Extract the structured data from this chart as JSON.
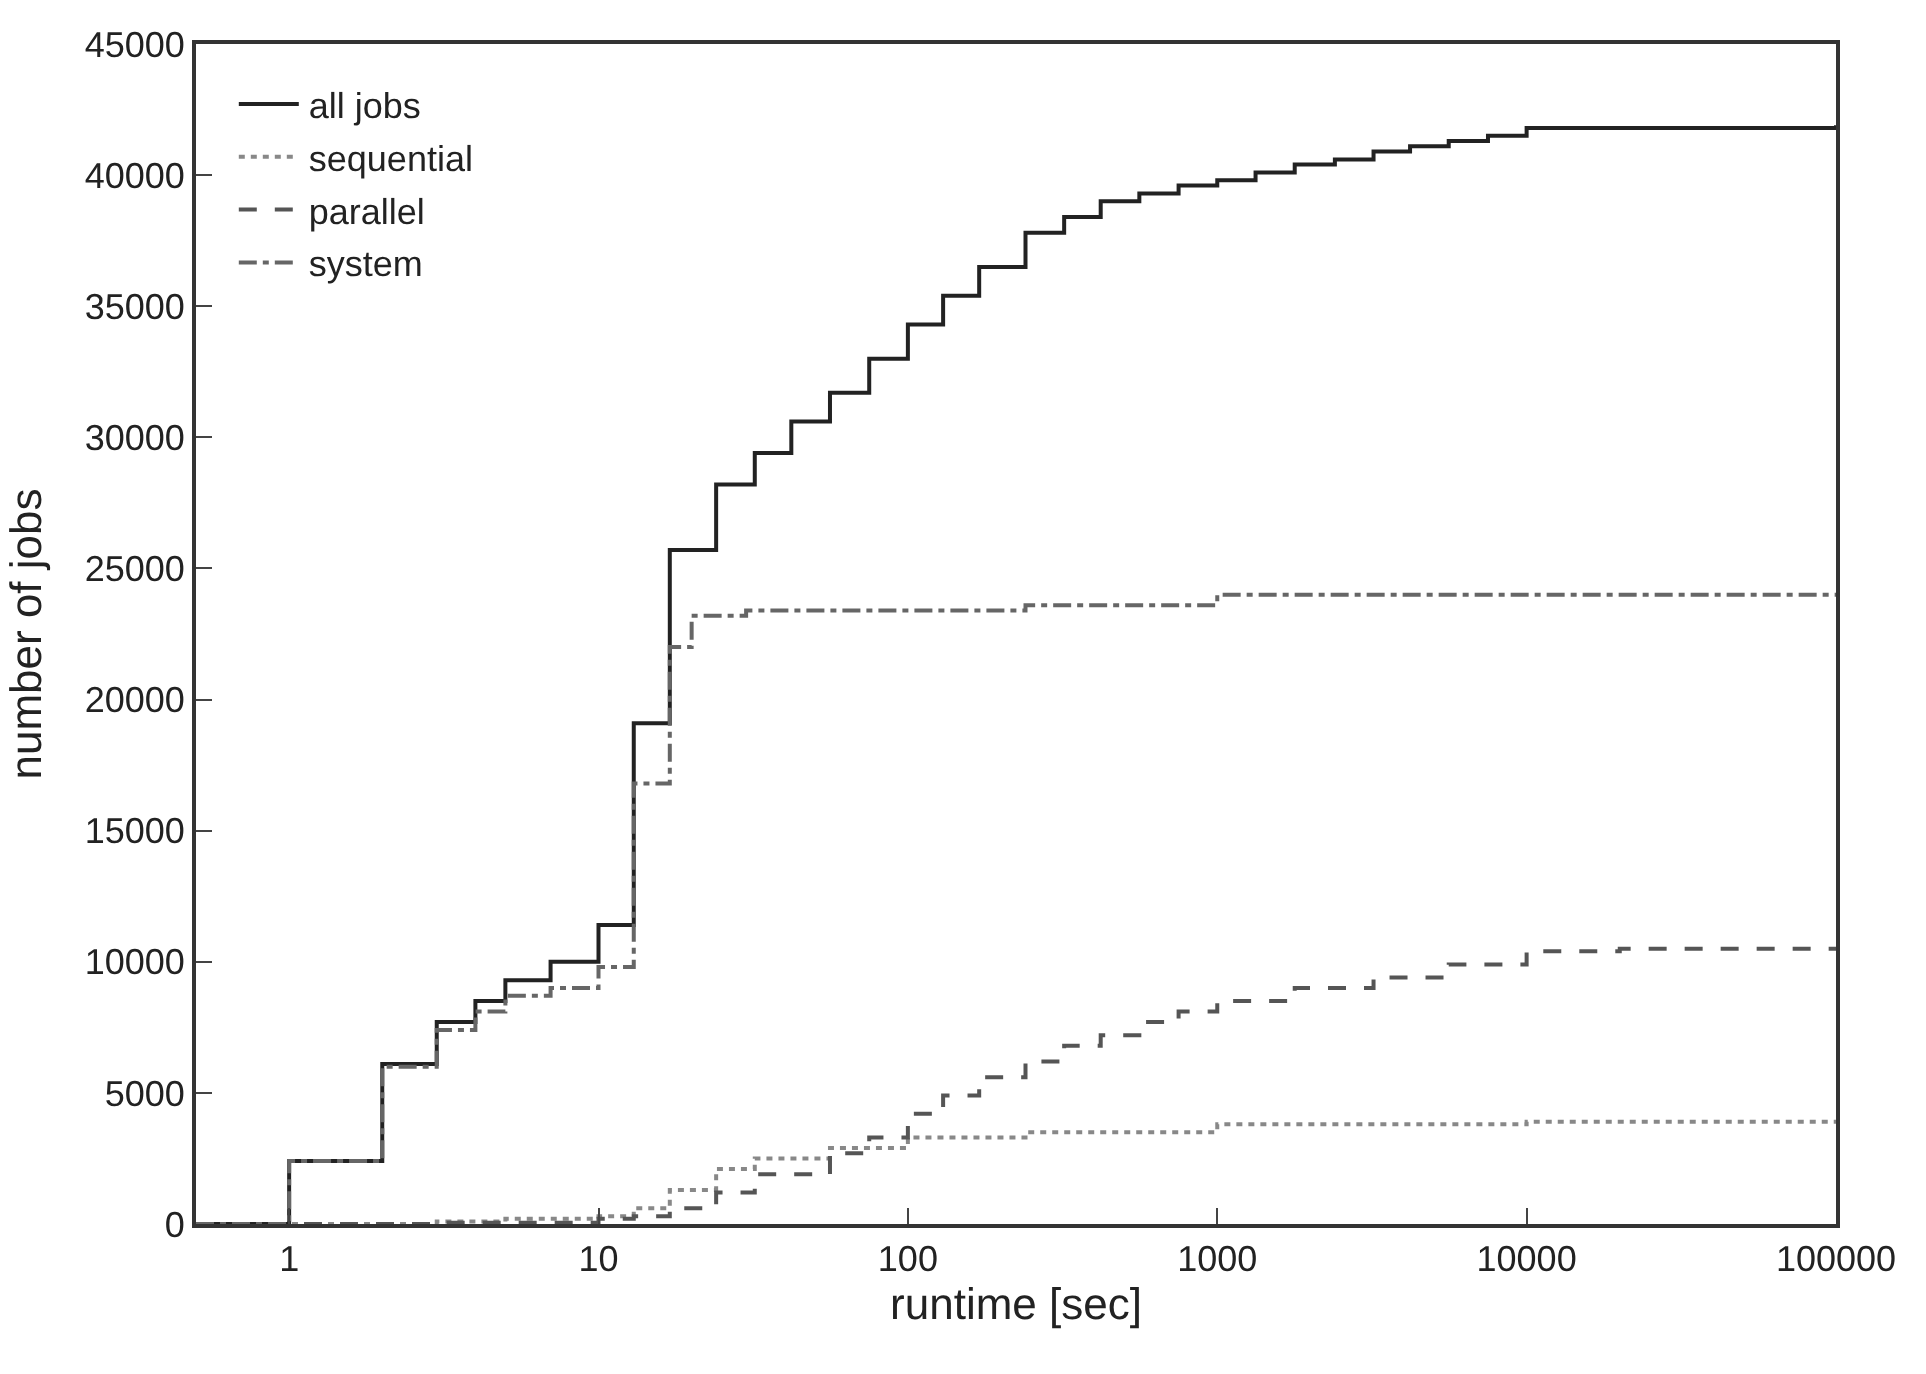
{
  "chart_data": {
    "type": "step",
    "xlabel": "runtime [sec]",
    "ylabel": "number of jobs",
    "log": "x",
    "legend": "top left",
    "xlim": [
      0.5,
      100000
    ],
    "xticks": [
      1,
      10,
      100,
      1000,
      10000,
      100000
    ],
    "ylim": [
      0,
      45000
    ],
    "yticks": [
      0,
      5000,
      10000,
      15000,
      20000,
      25000,
      30000,
      35000,
      40000,
      45000
    ],
    "series": [
      {
        "name": "all jobs",
        "color": "#222222",
        "line_style": "solid",
        "x": [
          0.5,
          1,
          2,
          3,
          4,
          5,
          7,
          10,
          13,
          17,
          24,
          32,
          42,
          56,
          75,
          100,
          130,
          170,
          240,
          320,
          420,
          560,
          750,
          1000,
          1330,
          1780,
          2400,
          3200,
          4200,
          5600,
          7500,
          10000,
          100000
        ],
        "values": [
          0,
          2400,
          6100,
          7700,
          8500,
          9300,
          10000,
          11400,
          19100,
          25700,
          28200,
          29400,
          30600,
          31700,
          33000,
          34300,
          35400,
          36500,
          37800,
          38400,
          39000,
          39300,
          39600,
          39800,
          40100,
          40400,
          40600,
          40900,
          41100,
          41300,
          41500,
          41800,
          41900
        ]
      },
      {
        "name": "sequential",
        "color": "#888888",
        "line_style": "dotted",
        "x": [
          0.5,
          3,
          5,
          10,
          13,
          17,
          24,
          32,
          56,
          100,
          240,
          1000,
          10000,
          100000
        ],
        "values": [
          0,
          100,
          200,
          300,
          600,
          1300,
          2100,
          2500,
          2900,
          3300,
          3500,
          3800,
          3900,
          3900
        ]
      },
      {
        "name": "parallel",
        "color": "#555555",
        "line_style": "dashed",
        "x": [
          0.5,
          3,
          10,
          13,
          17,
          24,
          32,
          56,
          75,
          100,
          130,
          170,
          240,
          320,
          420,
          560,
          750,
          1000,
          1780,
          3200,
          5600,
          10000,
          20000,
          100000
        ],
        "values": [
          0,
          50,
          200,
          300,
          600,
          1200,
          1900,
          2700,
          3300,
          4200,
          4900,
          5600,
          6200,
          6800,
          7200,
          7700,
          8100,
          8500,
          9000,
          9400,
          9900,
          10400,
          10500,
          10500
        ]
      },
      {
        "name": "system",
        "color": "#666666",
        "line_style": "dashdot",
        "x": [
          0.5,
          1,
          2,
          3,
          4,
          5,
          7,
          10,
          13,
          17,
          20,
          30,
          240,
          1000,
          100000
        ],
        "values": [
          0,
          2400,
          6000,
          7400,
          8100,
          8700,
          9000,
          9800,
          16800,
          22000,
          23200,
          23400,
          23600,
          24000,
          24000
        ]
      }
    ]
  }
}
